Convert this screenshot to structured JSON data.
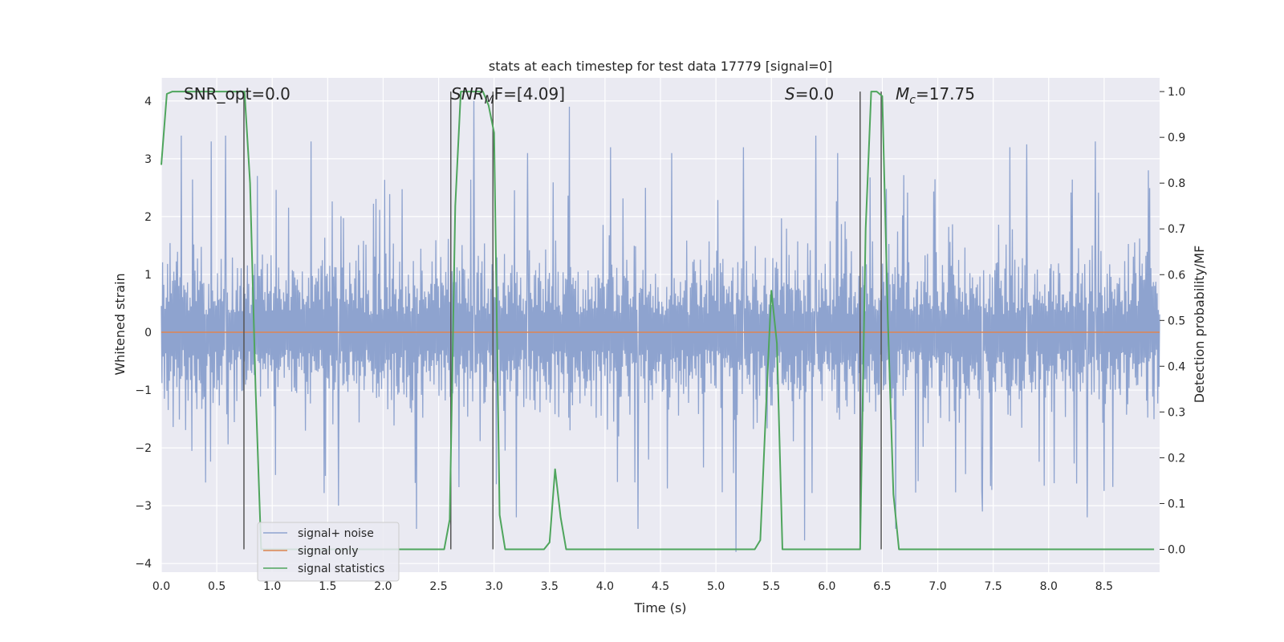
{
  "chart_data": {
    "type": "line",
    "title": "stats at each timestep for test data 17779 [signal=0]",
    "xlabel": "Time (s)",
    "ylabel": "Whitened strain",
    "ylabel_right": "Detection probability/MF",
    "xlim": [
      0.0,
      9.0
    ],
    "ylim": [
      -4.15,
      4.4
    ],
    "ylim_right": [
      -0.05,
      1.03
    ],
    "x_ticks": [
      0.0,
      0.5,
      1.0,
      1.5,
      2.0,
      2.5,
      3.0,
      3.5,
      4.0,
      4.5,
      5.0,
      5.5,
      6.0,
      6.5,
      7.0,
      7.5,
      8.0,
      8.5
    ],
    "x_tick_labels": [
      "0.0",
      "0.5",
      "1.0",
      "1.5",
      "2.0",
      "2.5",
      "3.0",
      "3.5",
      "4.0",
      "4.5",
      "5.0",
      "5.5",
      "6.0",
      "6.5",
      "7.0",
      "7.5",
      "8.0",
      "8.5"
    ],
    "y_ticks": [
      4,
      3,
      2,
      1,
      0,
      -1,
      -2,
      -3,
      -4
    ],
    "y_tick_labels": [
      "4",
      "3",
      "2",
      "1",
      "0",
      "−1",
      "−2",
      "−3",
      "−4"
    ],
    "y_ticks_right": [
      1.0,
      0.9,
      0.8,
      0.7,
      0.6,
      0.5,
      0.4,
      0.3,
      0.2,
      0.1,
      0.0
    ],
    "y_tick_labels_right": [
      "1.0",
      "0.9",
      "0.8",
      "0.7",
      "0.6",
      "0.5",
      "0.4",
      "0.3",
      "0.2",
      "0.1",
      "0.0"
    ],
    "grid": true,
    "legend": {
      "placement": "lower-left",
      "entries": [
        {
          "label": "signal+ noise",
          "color": "#8ea3cf"
        },
        {
          "label": "signal only",
          "color": "#dd8452"
        },
        {
          "label": "signal statistics",
          "color": "#4fa55d"
        }
      ]
    },
    "annotations": {
      "snr_opt": "SNR_opt=0.0",
      "snr_mf_sym": "SNR",
      "snr_mf_sub": "M",
      "snr_mf_rest": "F=[4.09]",
      "s_sym": "S",
      "s_rest": "=0.0",
      "mc_sym": "M",
      "mc_sub": "c",
      "mc_rest": "=17.75"
    },
    "series": [
      {
        "name": "signal statistics",
        "axis": "right",
        "color": "#4fa55d",
        "x": [
          0.0,
          0.05,
          0.1,
          0.2,
          0.6,
          0.7,
          0.75,
          0.8,
          0.85,
          0.9,
          1.0,
          2.55,
          2.6,
          2.65,
          2.7,
          2.9,
          2.95,
          3.0,
          3.05,
          3.1,
          3.15,
          3.45,
          3.5,
          3.55,
          3.6,
          3.65,
          3.7,
          3.75,
          5.35,
          5.4,
          5.45,
          5.5,
          5.55,
          5.6,
          5.65,
          6.25,
          6.3,
          6.35,
          6.4,
          6.45,
          6.5,
          6.55,
          6.6,
          6.65,
          8.95
        ],
        "y": [
          0.84,
          0.995,
          1.0,
          1.0,
          1.0,
          1.0,
          1.0,
          0.8,
          0.35,
          0.0,
          0.0,
          0.0,
          0.065,
          0.75,
          1.0,
          1.0,
          0.97,
          0.91,
          0.075,
          0.0,
          0.0,
          0.0,
          0.015,
          0.175,
          0.07,
          0.0,
          0.0,
          0.0,
          0.0,
          0.02,
          0.3,
          0.565,
          0.45,
          0.0,
          0.0,
          0.0,
          0.0,
          0.7,
          1.0,
          1.0,
          0.99,
          0.5,
          0.12,
          0.0,
          0.0
        ]
      },
      {
        "name": "signal only",
        "axis": "left",
        "color": "#dd8452",
        "x": [
          0.0,
          9.0
        ],
        "y": [
          0.0,
          0.0
        ]
      },
      {
        "name": "signal+ noise",
        "axis": "left",
        "color": "#8ea3cf",
        "x_range": [
          0.0,
          9.0
        ],
        "typical_range": [
          -2.0,
          2.0
        ],
        "peaks_high": [
          [
            0.18,
            3.4
          ],
          [
            0.45,
            3.3
          ],
          [
            0.58,
            3.4
          ],
          [
            1.35,
            3.3
          ],
          [
            2.82,
            4.0
          ],
          [
            3.3,
            3.1
          ],
          [
            3.68,
            3.9
          ],
          [
            4.05,
            3.2
          ],
          [
            4.6,
            3.1
          ],
          [
            5.25,
            3.2
          ],
          [
            5.9,
            3.4
          ],
          [
            6.1,
            3.1
          ],
          [
            7.65,
            3.2
          ],
          [
            7.8,
            3.25
          ],
          [
            8.42,
            3.3
          ],
          [
            8.9,
            2.8
          ]
        ],
        "peaks_low": [
          [
            0.4,
            -2.6
          ],
          [
            1.6,
            -3.0
          ],
          [
            2.3,
            -3.4
          ],
          [
            3.2,
            -3.2
          ],
          [
            4.3,
            -3.4
          ],
          [
            5.18,
            -3.8
          ],
          [
            5.8,
            -3.6
          ],
          [
            6.62,
            -3.4
          ],
          [
            7.4,
            -3.1
          ],
          [
            8.35,
            -3.2
          ]
        ]
      }
    ],
    "vertical_lines": [
      0.745,
      2.61,
      2.99,
      6.3,
      6.49
    ]
  }
}
